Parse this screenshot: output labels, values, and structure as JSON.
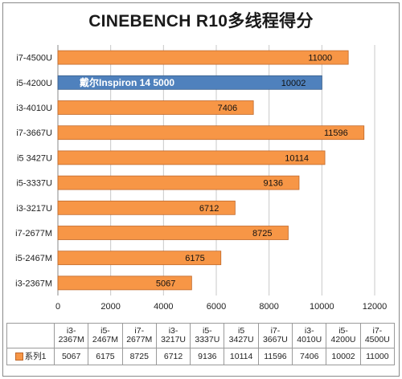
{
  "chart_data": {
    "type": "bar",
    "orientation": "horizontal",
    "title": "CINEBENCH R10多线程得分",
    "categories": [
      "i3-2367M",
      "i5-2467M",
      "i7-2677M",
      "i3-3217U",
      "i5-3337U",
      "i5 3427U",
      "i7-3667U",
      "i3-4010U",
      "i5-4200U",
      "i7-4500U"
    ],
    "series": [
      {
        "name": "系列1",
        "values": [
          5067,
          6175,
          8725,
          6712,
          9136,
          10114,
          11596,
          7406,
          10002,
          11000
        ]
      }
    ],
    "xlim": [
      0,
      12000
    ],
    "xticks": [
      0,
      2000,
      4000,
      6000,
      8000,
      10000,
      12000
    ],
    "grid": true,
    "highlight": {
      "category": "i5-4200U",
      "color": "#4f81bd",
      "annotation": "戴尔Inspiron 14 5000"
    },
    "bar_color": "#f79646",
    "table_headers": [
      "i3-\n2367M",
      "i5-\n2467M",
      "i7-\n2677M",
      "i3-\n3217U",
      "i5-\n3337U",
      "i5\n3427U",
      "i7-\n3667U",
      "i3-\n4010U",
      "i5-\n4200U",
      "i7-\n4500U"
    ],
    "table_values": [
      "5067",
      "6175",
      "8725",
      "6712",
      "9136",
      "10114",
      "11596",
      "7406",
      "10002",
      "11000"
    ]
  }
}
